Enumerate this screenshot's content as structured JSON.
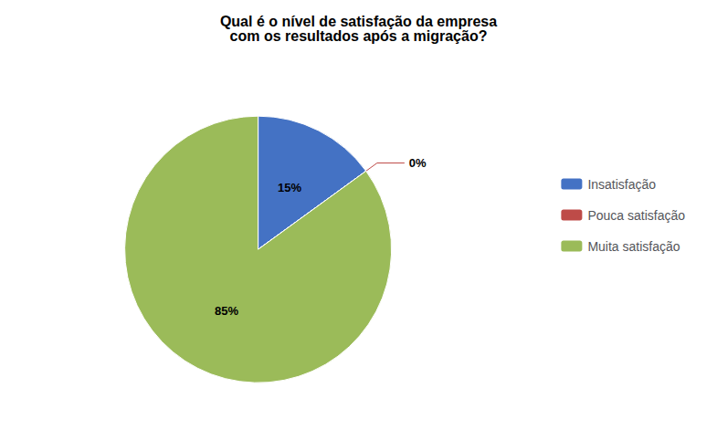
{
  "chart_data": {
    "type": "pie",
    "title": "Qual é o nível de satisfação da empresa\ncom os resultados após a migração?",
    "categories": [
      "Insatisfação",
      "Pouca satisfação",
      "Muita satisfação"
    ],
    "values": [
      15,
      0,
      85
    ],
    "value_labels": [
      "15%",
      "0%",
      "85%"
    ],
    "colors": [
      "#4472C4",
      "#BE4B48",
      "#9BBB59"
    ],
    "data_labels": true,
    "legend": "right"
  }
}
